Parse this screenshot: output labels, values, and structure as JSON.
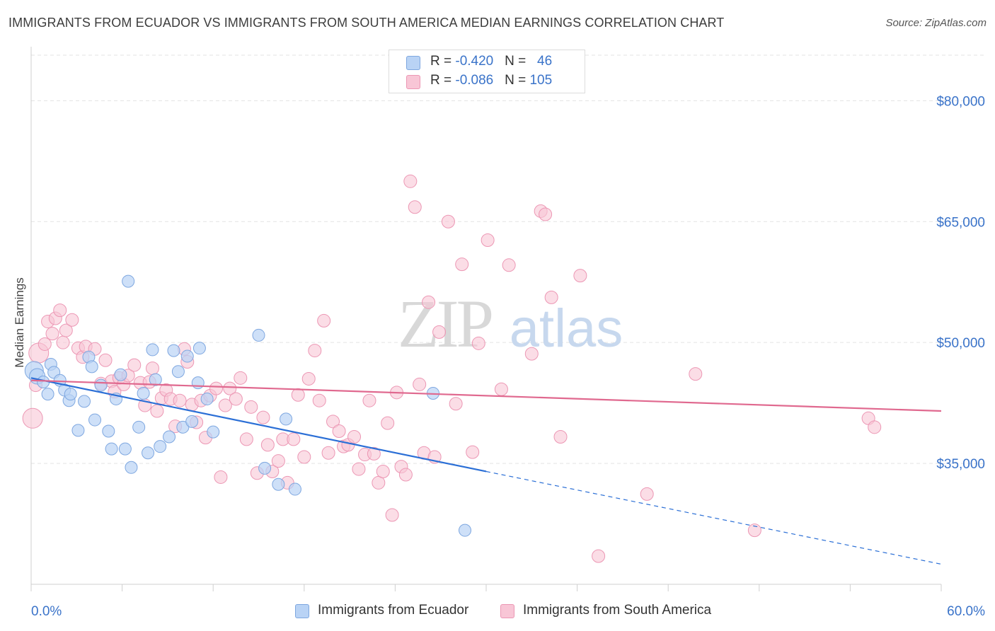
{
  "header": {
    "title": "IMMIGRANTS FROM ECUADOR VS IMMIGRANTS FROM SOUTH AMERICA MEDIAN EARNINGS CORRELATION CHART",
    "source": "Source: ZipAtlas.com"
  },
  "watermark": {
    "zip": "ZIP",
    "atlas": "atlas"
  },
  "legend": {
    "rows": [
      {
        "r_label": "R = ",
        "r_value": "-0.420",
        "n_label": "N = ",
        "n_value": "46"
      },
      {
        "r_label": "R = ",
        "r_value": "-0.086",
        "n_label": "N = ",
        "n_value": "105"
      }
    ],
    "bottom": [
      "Immigrants from Ecuador",
      "Immigrants from South America"
    ]
  },
  "colors": {
    "blue_fill": "#b9d3f5",
    "blue_stroke": "#7ea7e0",
    "blue_line": "#2b6fd6",
    "pink_fill": "#f8c6d6",
    "pink_stroke": "#ec97b4",
    "pink_line": "#e0698f",
    "tick_label": "#3a73c9",
    "grid": "#e3e3e3"
  },
  "chart_data": {
    "type": "scatter",
    "title": "IMMIGRANTS FROM ECUADOR VS IMMIGRANTS FROM SOUTH AMERICA MEDIAN EARNINGS CORRELATION CHART",
    "xlabel": "",
    "ylabel": "Median Earnings",
    "xlim": [
      0,
      60
    ],
    "ylim": [
      20000,
      86000
    ],
    "x_tick_labels": [
      "0.0%",
      "60.0%"
    ],
    "y_ticks": [
      35000,
      50000,
      65000,
      80000
    ],
    "y_tick_labels": [
      "$35,000",
      "$50,000",
      "$65,000",
      "$80,000"
    ],
    "grid": true,
    "legend_position": "top-center",
    "series": [
      {
        "name": "Immigrants from Ecuador",
        "color": "#b9d3f5",
        "trend": {
          "x": [
            0,
            30
          ],
          "y": [
            45600,
            34000
          ],
          "dashed_to": [
            60,
            22500
          ]
        },
        "points": [
          [
            0.2,
            46500
          ],
          [
            0.4,
            45800
          ],
          [
            0.8,
            45100
          ],
          [
            1.1,
            43600
          ],
          [
            1.3,
            47300
          ],
          [
            1.5,
            46300
          ],
          [
            1.9,
            45300
          ],
          [
            2.2,
            44100
          ],
          [
            2.5,
            42800
          ],
          [
            2.6,
            43600
          ],
          [
            3.1,
            39100
          ],
          [
            3.5,
            42700
          ],
          [
            3.8,
            48200
          ],
          [
            4.0,
            47000
          ],
          [
            4.2,
            40400
          ],
          [
            4.6,
            44700
          ],
          [
            5.1,
            39000
          ],
          [
            5.3,
            36800
          ],
          [
            5.6,
            43000
          ],
          [
            5.9,
            46000
          ],
          [
            6.2,
            36800
          ],
          [
            6.4,
            57600
          ],
          [
            6.6,
            34500
          ],
          [
            7.1,
            39500
          ],
          [
            7.4,
            43700
          ],
          [
            7.7,
            36300
          ],
          [
            8.0,
            49100
          ],
          [
            8.2,
            45400
          ],
          [
            8.5,
            37100
          ],
          [
            9.1,
            38300
          ],
          [
            9.4,
            49000
          ],
          [
            9.7,
            46400
          ],
          [
            10.0,
            39500
          ],
          [
            10.3,
            48300
          ],
          [
            10.6,
            40200
          ],
          [
            11.0,
            45000
          ],
          [
            11.1,
            49300
          ],
          [
            11.6,
            43000
          ],
          [
            12.0,
            38900
          ],
          [
            15.0,
            50900
          ],
          [
            15.4,
            34400
          ],
          [
            16.3,
            32400
          ],
          [
            16.8,
            40500
          ],
          [
            17.4,
            31800
          ],
          [
            26.5,
            43700
          ],
          [
            28.6,
            26700
          ]
        ]
      },
      {
        "name": "Immigrants from South America",
        "color": "#f8c6d6",
        "trend": {
          "x": [
            0,
            60
          ],
          "y": [
            45300,
            41500
          ]
        },
        "points": [
          [
            0.1,
            40600
          ],
          [
            0.3,
            44700
          ],
          [
            0.5,
            48700
          ],
          [
            0.9,
            49800
          ],
          [
            1.1,
            52600
          ],
          [
            1.4,
            51100
          ],
          [
            1.6,
            53000
          ],
          [
            1.9,
            54000
          ],
          [
            2.1,
            50000
          ],
          [
            2.3,
            51500
          ],
          [
            2.7,
            52800
          ],
          [
            3.1,
            49300
          ],
          [
            3.4,
            48200
          ],
          [
            3.6,
            49500
          ],
          [
            4.2,
            49200
          ],
          [
            4.6,
            44900
          ],
          [
            4.9,
            47800
          ],
          [
            5.3,
            45200
          ],
          [
            5.5,
            43900
          ],
          [
            5.8,
            45600
          ],
          [
            6.1,
            44800
          ],
          [
            6.4,
            45900
          ],
          [
            6.8,
            47200
          ],
          [
            7.2,
            45000
          ],
          [
            7.5,
            42200
          ],
          [
            7.8,
            45100
          ],
          [
            8.0,
            46800
          ],
          [
            8.3,
            41500
          ],
          [
            8.6,
            43100
          ],
          [
            8.9,
            44100
          ],
          [
            9.2,
            43000
          ],
          [
            9.5,
            39600
          ],
          [
            9.8,
            42800
          ],
          [
            10.1,
            49200
          ],
          [
            10.3,
            47600
          ],
          [
            10.6,
            42300
          ],
          [
            10.9,
            40100
          ],
          [
            11.2,
            42800
          ],
          [
            11.5,
            38200
          ],
          [
            11.8,
            43400
          ],
          [
            12.2,
            44300
          ],
          [
            12.5,
            33300
          ],
          [
            12.8,
            42200
          ],
          [
            13.1,
            44300
          ],
          [
            13.5,
            43000
          ],
          [
            13.8,
            45600
          ],
          [
            14.2,
            38000
          ],
          [
            14.5,
            42000
          ],
          [
            14.9,
            33800
          ],
          [
            15.3,
            40700
          ],
          [
            15.6,
            37300
          ],
          [
            15.9,
            34000
          ],
          [
            16.3,
            35300
          ],
          [
            16.6,
            38000
          ],
          [
            16.9,
            32600
          ],
          [
            17.3,
            38000
          ],
          [
            17.6,
            43500
          ],
          [
            18.0,
            35800
          ],
          [
            18.3,
            45500
          ],
          [
            18.7,
            49000
          ],
          [
            19.0,
            42800
          ],
          [
            19.3,
            52700
          ],
          [
            19.6,
            36300
          ],
          [
            19.9,
            40200
          ],
          [
            20.3,
            39000
          ],
          [
            20.6,
            37100
          ],
          [
            20.9,
            37300
          ],
          [
            21.3,
            38300
          ],
          [
            21.6,
            34300
          ],
          [
            22.0,
            36100
          ],
          [
            22.3,
            42800
          ],
          [
            22.6,
            36200
          ],
          [
            22.9,
            32600
          ],
          [
            23.2,
            34000
          ],
          [
            23.5,
            40000
          ],
          [
            23.8,
            28600
          ],
          [
            24.1,
            43800
          ],
          [
            24.4,
            34600
          ],
          [
            24.7,
            33600
          ],
          [
            25.0,
            70000
          ],
          [
            25.3,
            66800
          ],
          [
            25.6,
            44800
          ],
          [
            25.9,
            36300
          ],
          [
            26.2,
            55000
          ],
          [
            26.6,
            35800
          ],
          [
            26.9,
            51300
          ],
          [
            27.5,
            65000
          ],
          [
            28.0,
            42400
          ],
          [
            28.4,
            59700
          ],
          [
            29.1,
            36400
          ],
          [
            29.5,
            49900
          ],
          [
            30.1,
            62700
          ],
          [
            31.0,
            44200
          ],
          [
            31.5,
            59600
          ],
          [
            33.0,
            48600
          ],
          [
            33.6,
            66300
          ],
          [
            33.9,
            65900
          ],
          [
            34.3,
            55600
          ],
          [
            34.9,
            38300
          ],
          [
            36.2,
            58300
          ],
          [
            40.6,
            31200
          ],
          [
            43.8,
            46100
          ],
          [
            47.7,
            26700
          ],
          [
            55.2,
            40600
          ],
          [
            55.6,
            39500
          ],
          [
            37.4,
            23500
          ]
        ]
      }
    ]
  }
}
